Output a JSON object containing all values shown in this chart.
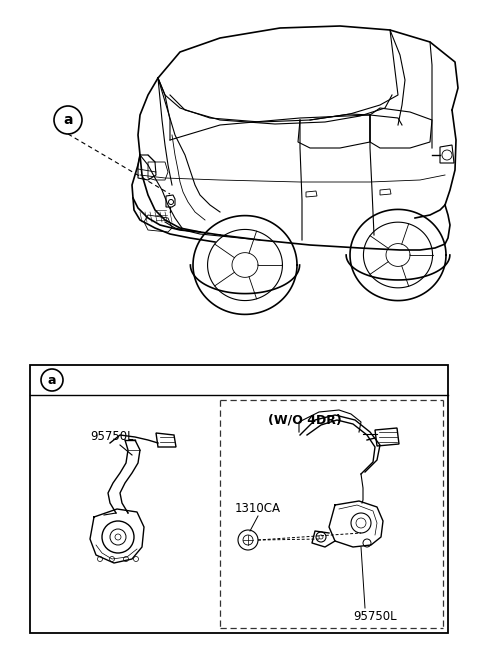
{
  "bg_color": "#ffffff",
  "fig_width": 4.8,
  "fig_height": 6.5,
  "dpi": 100,
  "car_label": "a",
  "part_label_1": "95750L",
  "part_label_2": "95750L",
  "part_label_3": "1310CA",
  "wo_4dr": "(W/O 4DR)",
  "line_color": "#000000",
  "light_line": "#999999"
}
